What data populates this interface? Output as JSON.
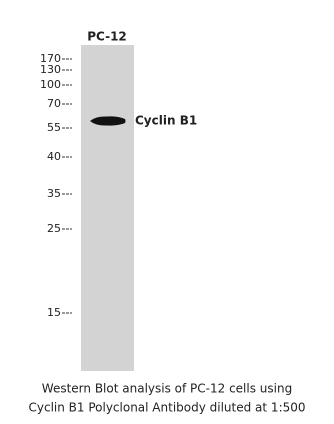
{
  "lane_label": "PC-12",
  "markers": [
    "170",
    "130",
    "100",
    "70",
    "55",
    "40",
    "35",
    "25",
    "15"
  ],
  "band_label": "Cyclin B1",
  "caption": [
    "Western Blot analysis of PC-12 cells using",
    "Cyclin B1 Polyclonal Antibody diluted at 1:500"
  ]
}
